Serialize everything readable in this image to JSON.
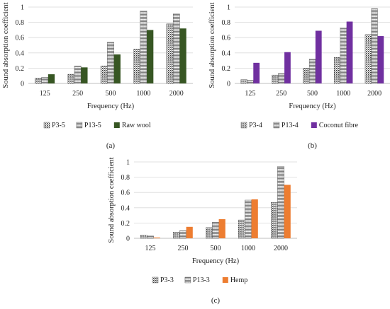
{
  "colors": {
    "p3": "#444444",
    "p13": "#555555",
    "raw_wool": "#375623",
    "coconut_fibre": "#7030A0",
    "hemp": "#ED7D31",
    "gridline": "#d9d9d9",
    "axis": "#bfbfbf"
  },
  "chart_data": [
    {
      "type": "bar",
      "panel_label": "(a)",
      "categories": [
        "125",
        "250",
        "500",
        "1000",
        "2000"
      ],
      "xlabel": "Frequency (Hz)",
      "ylabel": "Sound absorption coefficient",
      "ylim": [
        0,
        1
      ],
      "yticks": [
        "0",
        "0.2",
        "0.4",
        "0.6",
        "0.8",
        "1"
      ],
      "grid": true,
      "legend_position": "bottom",
      "series": [
        {
          "name": "P3-5",
          "pattern": "dots",
          "values": [
            0.07,
            0.12,
            0.23,
            0.45,
            0.78
          ]
        },
        {
          "name": "P13-5",
          "pattern": "zigzag",
          "values": [
            0.08,
            0.23,
            0.54,
            0.95,
            0.91
          ]
        },
        {
          "name": "Raw wool",
          "pattern": "solid",
          "values": [
            0.12,
            0.21,
            0.38,
            0.7,
            0.72
          ]
        }
      ]
    },
    {
      "type": "bar",
      "panel_label": "(b)",
      "categories": [
        "125",
        "250",
        "500",
        "1000",
        "2000"
      ],
      "xlabel": "Frequency (Hz)",
      "ylabel": "Sound absorption coefficient",
      "ylim": [
        0,
        1
      ],
      "yticks": [
        "0",
        "0.2",
        "0.4",
        "0.6",
        "0.8",
        "1"
      ],
      "grid": true,
      "legend_position": "bottom",
      "series": [
        {
          "name": "P3-4",
          "pattern": "dots",
          "values": [
            0.05,
            0.11,
            0.2,
            0.34,
            0.64
          ]
        },
        {
          "name": "P13-4",
          "pattern": "zigzag",
          "values": [
            0.04,
            0.13,
            0.32,
            0.73,
            0.98
          ]
        },
        {
          "name": "Coconut fibre",
          "pattern": "solid",
          "values": [
            0.27,
            0.41,
            0.69,
            0.81,
            0.62
          ]
        }
      ]
    },
    {
      "type": "bar",
      "panel_label": "(c)",
      "categories": [
        "125",
        "250",
        "500",
        "1000",
        "2000"
      ],
      "xlabel": "Frequency (Hz)",
      "ylabel": "Sound absorption coefficient",
      "ylim": [
        0,
        1
      ],
      "yticks": [
        "0",
        "0.2",
        "0.4",
        "0.6",
        "0.8",
        "1"
      ],
      "grid": true,
      "legend_position": "bottom",
      "series": [
        {
          "name": "P3-3",
          "pattern": "dots",
          "values": [
            0.04,
            0.08,
            0.14,
            0.24,
            0.47
          ]
        },
        {
          "name": "P13-3",
          "pattern": "zigzag",
          "values": [
            0.03,
            0.1,
            0.21,
            0.5,
            0.94
          ]
        },
        {
          "name": "Hemp",
          "pattern": "solid",
          "values": [
            0.01,
            0.15,
            0.25,
            0.51,
            0.7
          ]
        }
      ]
    }
  ]
}
